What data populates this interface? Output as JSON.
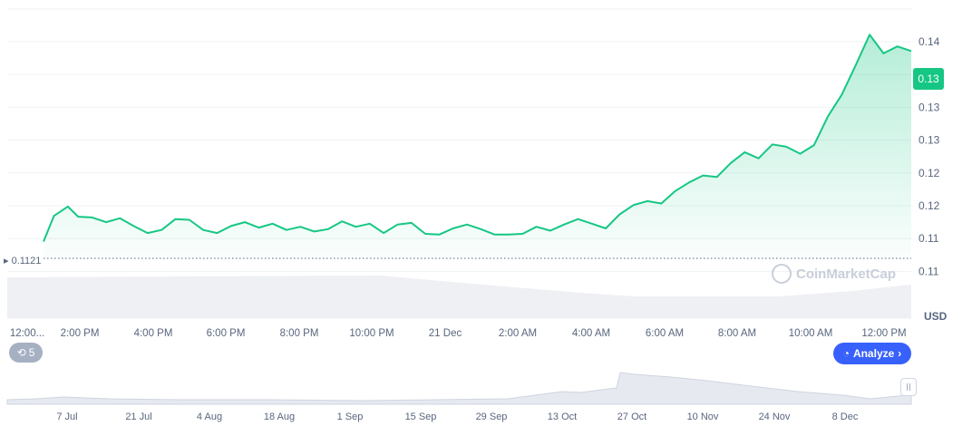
{
  "chart_data": {
    "type": "area",
    "currency": "USD",
    "current_price_label": "0.13",
    "baseline_label": "0.1121",
    "y_ticks": [
      "0.14",
      "0.13",
      "0.13",
      "0.13",
      "0.12",
      "0.12",
      "0.11",
      "0.11"
    ],
    "x_ticks": [
      "12:00...",
      "2:00 PM",
      "4:00 PM",
      "6:00 PM",
      "8:00 PM",
      "10:00 PM",
      "21 Dec",
      "2:00 AM",
      "4:00 AM",
      "6:00 AM",
      "8:00 AM",
      "10:00 AM",
      "12:00 PM"
    ],
    "navigator_ticks": [
      "7 Jul",
      "21 Jul",
      "4 Aug",
      "18 Aug",
      "1 Sep",
      "15 Sep",
      "29 Sep",
      "13 Oct",
      "27 Oct",
      "10 Nov",
      "24 Nov",
      "8 Dec"
    ],
    "ylim": [
      0.1084,
      0.1422
    ],
    "price_series": {
      "t": [
        0,
        0.3,
        0.7,
        1.0,
        1.4,
        1.8,
        2.2,
        2.6,
        3.0,
        3.4,
        3.8,
        4.2,
        4.6,
        5.0,
        5.4,
        5.8,
        6.2,
        6.6,
        7.0,
        7.4,
        7.8,
        8.2,
        8.6,
        9.0,
        9.4,
        9.8,
        10.2,
        10.6,
        11.0,
        11.4,
        11.8,
        12.2,
        12.6,
        13.0,
        13.4,
        13.8,
        14.2,
        14.6,
        15.0,
        15.4,
        15.8,
        16.2,
        16.6,
        17.0,
        17.4,
        17.8,
        18.2,
        18.6,
        19.0,
        19.4,
        19.8,
        20.2,
        20.6,
        21.0,
        21.4,
        21.8,
        22.2,
        22.6,
        23.0,
        23.4,
        23.8,
        24.2,
        24.6,
        25.0
      ],
      "price": [
        0.1123,
        0.1156,
        0.1168,
        0.1155,
        0.1154,
        0.1148,
        0.1153,
        0.1143,
        0.1134,
        0.1138,
        0.1152,
        0.1151,
        0.1138,
        0.1134,
        0.1143,
        0.1148,
        0.1141,
        0.1146,
        0.1138,
        0.1142,
        0.1136,
        0.1139,
        0.1149,
        0.1142,
        0.1146,
        0.1134,
        0.1145,
        0.1147,
        0.1133,
        0.1132,
        0.114,
        0.1145,
        0.1139,
        0.1132,
        0.1132,
        0.1133,
        0.1142,
        0.1137,
        0.1145,
        0.1152,
        0.1146,
        0.114,
        0.1158,
        0.117,
        0.1175,
        0.1172,
        0.1188,
        0.1199,
        0.1208,
        0.1206,
        0.1224,
        0.1238,
        0.123,
        0.1248,
        0.1245,
        0.1236,
        0.1247,
        0.1284,
        0.1312,
        0.135,
        0.1389,
        0.1365,
        0.1374,
        0.1368
      ]
    }
  },
  "ui": {
    "watermark_text": "CoinMarketCap",
    "history_count": "5",
    "history_icon": "history-clock-icon",
    "analyze_label": "Analyze",
    "analyze_icon": "analyze-gauge-icon",
    "accent_color": "#16c784",
    "button_color": "#3861fb"
  }
}
